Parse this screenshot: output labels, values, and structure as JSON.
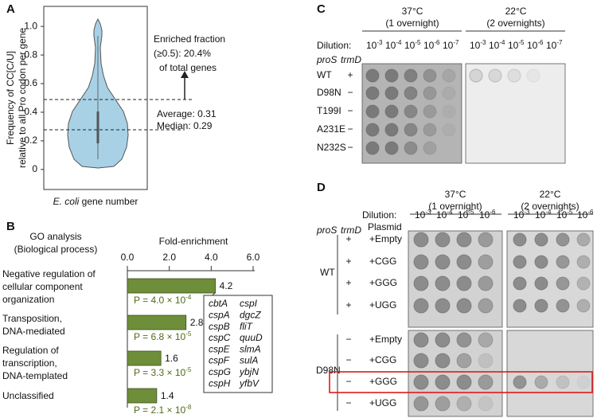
{
  "chart_data": [
    {
      "type": "violin",
      "panel": "A",
      "ylabel": [
        "Frequency of CC[C/U]",
        "relative to all Pro codon per gene"
      ],
      "xlabel": [
        "E. coli",
        " gene number"
      ],
      "ylim": [
        -0.14,
        1.14
      ],
      "yticks": [
        0,
        0.2,
        0.4,
        0.6,
        0.8,
        {
          "value": 1.0,
          "label": "1.0"
        }
      ],
      "color": "#a8d1e6",
      "annotations": [
        "Enriched fraction",
        "(≥0.5): 20.4%",
        "of total genes",
        "Average: 0.31",
        "Median: 0.29"
      ]
    },
    {
      "type": "barh",
      "panel": "B",
      "title": [
        "GO analysis",
        "(Biological process)"
      ],
      "xlabel": "Fold-enrichment",
      "categories": [
        "Negative regulation of\ncellular component\norganization",
        "Transposition,\nDNA-mediated",
        "Regulation of\ntranscription,\nDNA-templated",
        "Unclassified"
      ],
      "values": [
        4.2,
        2.8,
        1.6,
        1.4
      ],
      "color": "#6e8e3a",
      "xlim": [
        0,
        6.0
      ],
      "xticks": [
        {
          "value": 0,
          "label": "0.0"
        },
        {
          "value": 2.0,
          "label": "2.0"
        },
        {
          "value": 4.0,
          "label": "4.0"
        },
        {
          "value": 6.0,
          "label": "6.0"
        }
      ],
      "p_values": [
        {
          "text": "P = 4.0 × 10",
          "exponent": "-4"
        },
        {
          "text": "P = 6.8 × 10",
          "exponent": "-5"
        },
        {
          "text": "P = 3.3 × 10",
          "exponent": "-5"
        },
        {
          "text": "P = 2.1 × 10",
          "exponent": "-8"
        }
      ],
      "p_color": "#4f6a1a",
      "genes": [
        {
          "name": "cbtA",
          "color": "#e0191b"
        },
        {
          "name": "cspI",
          "color": "#e0191b"
        },
        {
          "name": "cspA",
          "color": "#e0191b"
        },
        {
          "name": "dgcZ",
          "color": "#e0191b"
        },
        {
          "name": "cspB",
          "color": "#e0191b"
        },
        {
          "name": "fliT",
          "color": "#111111"
        },
        {
          "name": "cspC",
          "color": "#111111"
        },
        {
          "name": "quuD",
          "color": "#111111"
        },
        {
          "name": "cspE",
          "color": "#e0191b"
        },
        {
          "name": "slmA",
          "color": "#e0191b"
        },
        {
          "name": "cspF",
          "color": "#e0191b"
        },
        {
          "name": "sulA",
          "color": "#e0191b"
        },
        {
          "name": "cspG",
          "color": "#e0191b"
        },
        {
          "name": "ybjN",
          "color": "#e0191b"
        },
        {
          "name": "cspH",
          "color": "#e0191b"
        },
        {
          "name": "yfbV",
          "color": "#111111"
        }
      ]
    }
  ],
  "panel_c": {
    "label": "C",
    "conditions": [
      {
        "temp": "37°C",
        "time": "(1 overnight)"
      },
      {
        "temp": "22°C",
        "time": "(2 overnights)"
      }
    ],
    "dilution_label": "Dilution:",
    "dilutions": [
      {
        "base": "10",
        "exp": "-3"
      },
      {
        "base": "10",
        "exp": "-4"
      },
      {
        "base": "10",
        "exp": "-5"
      },
      {
        "base": "10",
        "exp": "-6"
      },
      {
        "base": "10",
        "exp": "-7"
      }
    ],
    "column_headers": [
      "proS",
      "trmD"
    ],
    "rows": [
      {
        "proS": "WT",
        "trmD": "+"
      },
      {
        "proS": "D98N",
        "trmD": "−"
      },
      {
        "proS": "T199I",
        "trmD": "−"
      },
      {
        "proS": "A231E",
        "trmD": "−"
      },
      {
        "proS": "N232S",
        "trmD": "−"
      }
    ]
  },
  "panel_d": {
    "label": "D",
    "conditions": [
      {
        "temp": "37°C",
        "time": "(1 overnight)"
      },
      {
        "temp": "22°C",
        "time": "(2 overnights)"
      }
    ],
    "dilution_label": "Dilution:",
    "dilutions": [
      {
        "base": "10",
        "exp": "-3"
      },
      {
        "base": "10",
        "exp": "-4"
      },
      {
        "base": "10",
        "exp": "-5"
      },
      {
        "base": "10",
        "exp": "-6"
      }
    ],
    "column_headers": [
      "proS",
      "trmD",
      "Plasmid"
    ],
    "groups": [
      {
        "proS": "WT",
        "rows": [
          {
            "trmD": "+",
            "plasmid": "+Empty"
          },
          {
            "trmD": "+",
            "plasmid": "+CGG"
          },
          {
            "trmD": "+",
            "plasmid": "+GGG"
          },
          {
            "trmD": "+",
            "plasmid": "+UGG"
          }
        ]
      },
      {
        "proS": "D98N",
        "rows": [
          {
            "trmD": "−",
            "plasmid": "+Empty"
          },
          {
            "trmD": "−",
            "plasmid": "+CGG"
          },
          {
            "trmD": "−",
            "plasmid": "+GGG"
          },
          {
            "trmD": "−",
            "plasmid": "+UGG"
          }
        ]
      }
    ]
  }
}
